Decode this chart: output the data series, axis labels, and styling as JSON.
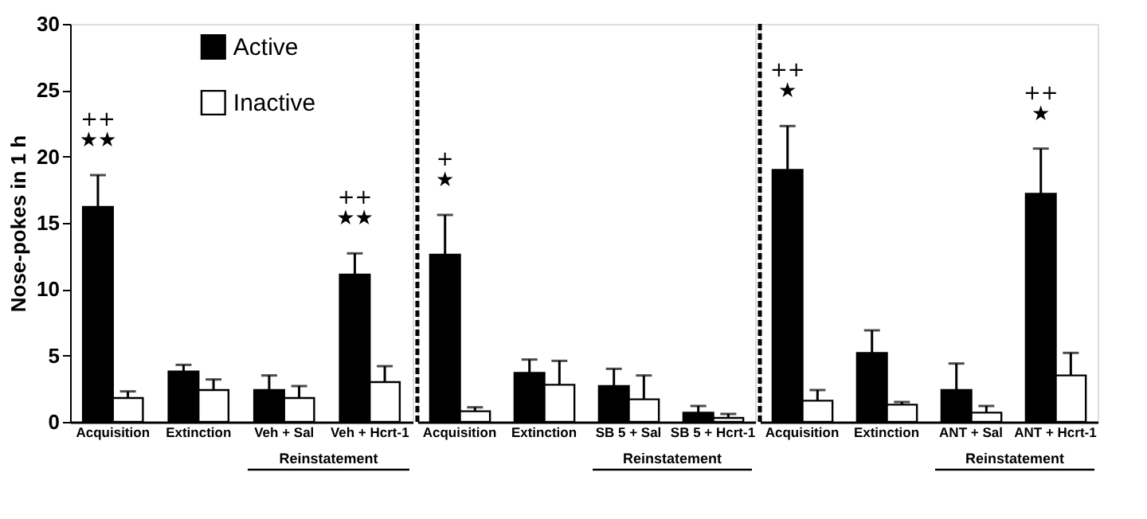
{
  "chart_data": [
    {
      "type": "bar",
      "categories": [
        "Acquisition",
        "Extinction",
        "Veh + Sal",
        "Veh + Hcrt-1"
      ],
      "ylabel": "Nose-pokes in 1 h",
      "ylim": [
        0,
        30
      ],
      "yticks": [
        0,
        5,
        10,
        15,
        20,
        25,
        30
      ],
      "grid": false,
      "legend": "top",
      "series": [
        {
          "name": "Active",
          "color": "#000000",
          "values": [
            16.2,
            3.8,
            2.4,
            11.1
          ],
          "errors": [
            [
              16.2,
              18.6
            ],
            [
              3.8,
              4.3
            ],
            [
              2.4,
              3.5
            ],
            [
              11.1,
              12.7
            ]
          ]
        },
        {
          "name": "Inactive",
          "color": "#ffffff",
          "values": [
            1.8,
            2.4,
            1.8,
            3.0
          ],
          "errors": [
            [
              1.8,
              2.3
            ],
            [
              2.4,
              3.2
            ],
            [
              1.8,
              2.7
            ],
            [
              3.0,
              4.2
            ]
          ]
        }
      ],
      "annotations": [
        "++",
        "★★",
        "++",
        "★★",
        "Reinstatement"
      ]
    },
    {
      "type": "bar",
      "categories": [
        "Acquisition",
        "Extinction",
        "SB 5 + Sal",
        "SB 5 + Hcrt-1"
      ],
      "ylim": [
        0,
        30
      ],
      "yticks": [
        0,
        5,
        10,
        15,
        20,
        25,
        30
      ],
      "grid": false,
      "tick_labels": "x",
      "series": [
        {
          "color": "#000000",
          "values": [
            12.6,
            3.7,
            2.7,
            0.7
          ],
          "errors": [
            [
              12.6,
              15.6
            ],
            [
              3.7,
              4.7
            ],
            [
              2.7,
              4.0
            ],
            [
              0.7,
              1.2
            ]
          ]
        },
        {
          "color": "#ffffff",
          "values": [
            0.8,
            2.8,
            1.7,
            0.3
          ],
          "errors": [
            [
              0.8,
              1.1
            ],
            [
              2.8,
              4.6
            ],
            [
              1.7,
              3.5
            ],
            [
              0.3,
              0.6
            ]
          ]
        }
      ],
      "annotations": [
        "+",
        "★",
        "Reinstatement"
      ]
    },
    {
      "type": "bar",
      "categories": [
        "Acquisition",
        "Extinction",
        "ANT + Sal",
        "ANT + Hcrt-1"
      ],
      "ylim": [
        0,
        30
      ],
      "yticks": [
        0,
        5,
        10,
        15,
        20,
        25,
        30
      ],
      "grid": false,
      "tick_labels": "x",
      "series": [
        {
          "color": "#000000",
          "values": [
            19.0,
            5.2,
            2.4,
            17.2
          ],
          "errors": [
            [
              19.0,
              22.3
            ],
            [
              5.2,
              6.9
            ],
            [
              2.4,
              4.4
            ],
            [
              17.2,
              20.6
            ]
          ]
        },
        {
          "color": "#ffffff",
          "values": [
            1.6,
            1.3,
            0.7,
            3.5
          ],
          "errors": [
            [
              1.6,
              2.4
            ],
            [
              1.3,
              1.5
            ],
            [
              0.7,
              1.2
            ],
            [
              3.5,
              5.2
            ]
          ]
        }
      ],
      "annotations": [
        "++",
        "★",
        "++",
        "★",
        "Reinstatement"
      ]
    }
  ]
}
